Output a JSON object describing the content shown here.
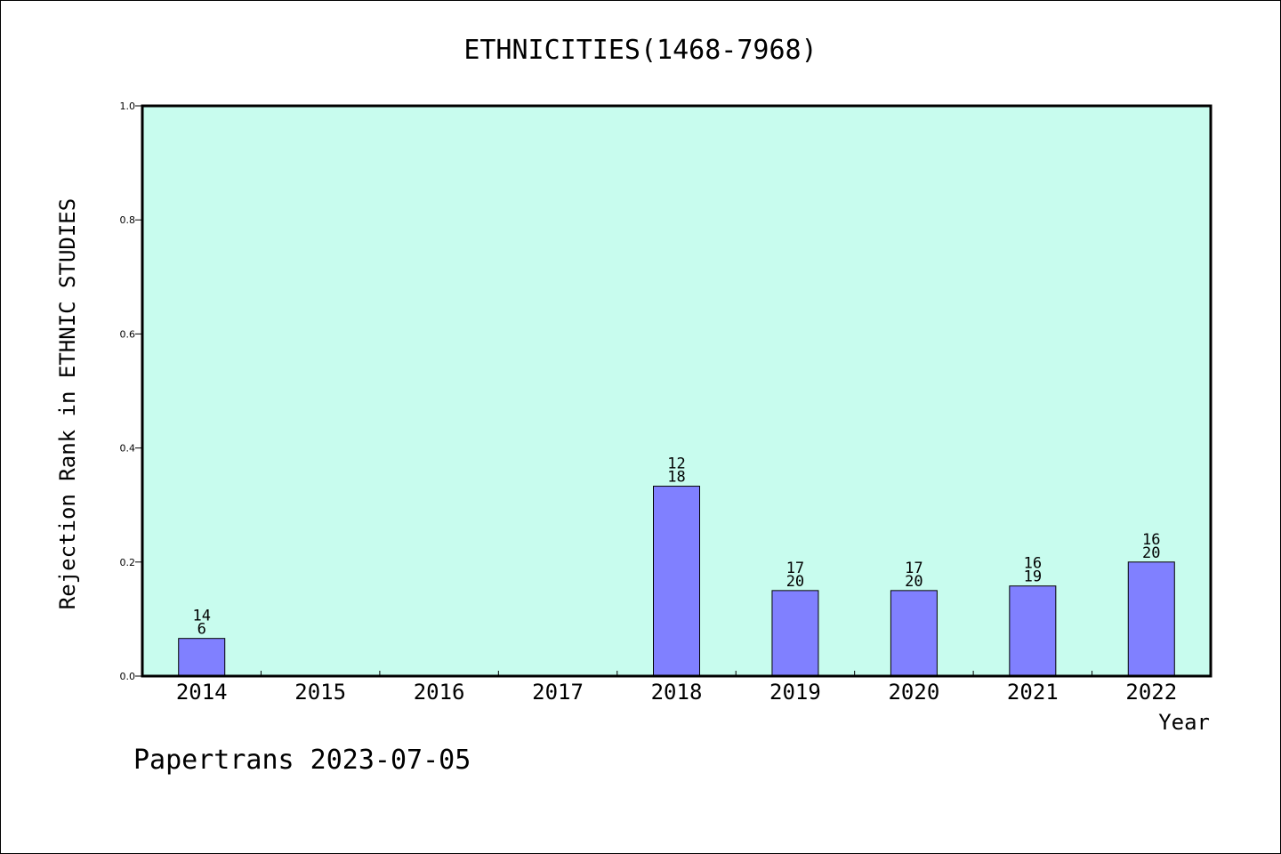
{
  "chart_data": {
    "type": "bar",
    "title": "ETHNICITIES(1468-7968)",
    "xlabel": "Year",
    "ylabel": "Rejection Rank in ETHNIC STUDIES",
    "ylim": [
      0,
      1.0
    ],
    "yticks": [
      "0.0",
      "0.2",
      "0.4",
      "0.6",
      "0.8",
      "1.0"
    ],
    "grid": false,
    "categories": [
      "2014",
      "2015",
      "2016",
      "2017",
      "2018",
      "2019",
      "2020",
      "2021",
      "2022"
    ],
    "values": [
      0.066,
      null,
      null,
      null,
      0.333,
      0.15,
      0.15,
      0.158,
      0.2
    ],
    "labels_top": [
      "14",
      "",
      "",
      "",
      "12",
      "17",
      "17",
      "16",
      "16"
    ],
    "labels_bottom": [
      "6",
      "",
      "",
      "",
      "18",
      "20",
      "20",
      "19",
      "20"
    ],
    "colors": {
      "plot_background": "#c8fcee",
      "bar_fill": "#8080ff",
      "bar_stroke": "#000000"
    }
  },
  "footer": {
    "text": "Papertrans 2023-07-05"
  }
}
